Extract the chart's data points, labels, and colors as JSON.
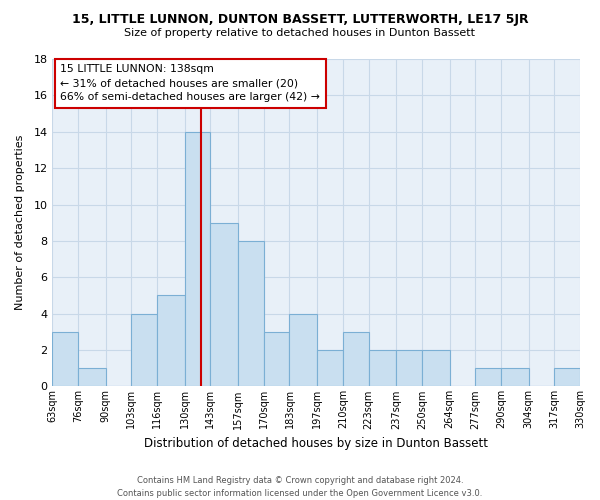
{
  "title": "15, LITTLE LUNNON, DUNTON BASSETT, LUTTERWORTH, LE17 5JR",
  "subtitle": "Size of property relative to detached houses in Dunton Bassett",
  "xlabel": "Distribution of detached houses by size in Dunton Bassett",
  "ylabel": "Number of detached properties",
  "bin_edges": [
    63,
    76,
    90,
    103,
    116,
    130,
    143,
    157,
    170,
    183,
    197,
    210,
    223,
    237,
    250,
    264,
    277,
    290,
    304,
    317,
    330
  ],
  "bin_labels": [
    "63sqm",
    "76sqm",
    "90sqm",
    "103sqm",
    "116sqm",
    "130sqm",
    "143sqm",
    "157sqm",
    "170sqm",
    "183sqm",
    "197sqm",
    "210sqm",
    "223sqm",
    "237sqm",
    "250sqm",
    "264sqm",
    "277sqm",
    "290sqm",
    "304sqm",
    "317sqm",
    "330sqm"
  ],
  "counts": [
    3,
    1,
    0,
    4,
    5,
    14,
    9,
    8,
    3,
    4,
    2,
    3,
    2,
    2,
    2,
    0,
    1,
    1,
    0,
    1
  ],
  "bar_color": "#c9dff0",
  "bar_edge_color": "#7bafd4",
  "property_value": 138,
  "vline_color": "#cc0000",
  "annotation_line1": "15 LITTLE LUNNON: 138sqm",
  "annotation_line2": "← 31% of detached houses are smaller (20)",
  "annotation_line3": "66% of semi-detached houses are larger (42) →",
  "annotation_box_color": "#ffffff",
  "annotation_box_edge": "#cc0000",
  "ylim": [
    0,
    18
  ],
  "yticks": [
    0,
    2,
    4,
    6,
    8,
    10,
    12,
    14,
    16,
    18
  ],
  "footer_text": "Contains HM Land Registry data © Crown copyright and database right 2024.\nContains public sector information licensed under the Open Government Licence v3.0.",
  "background_color": "#ffffff",
  "grid_color": "#c8d8e8"
}
